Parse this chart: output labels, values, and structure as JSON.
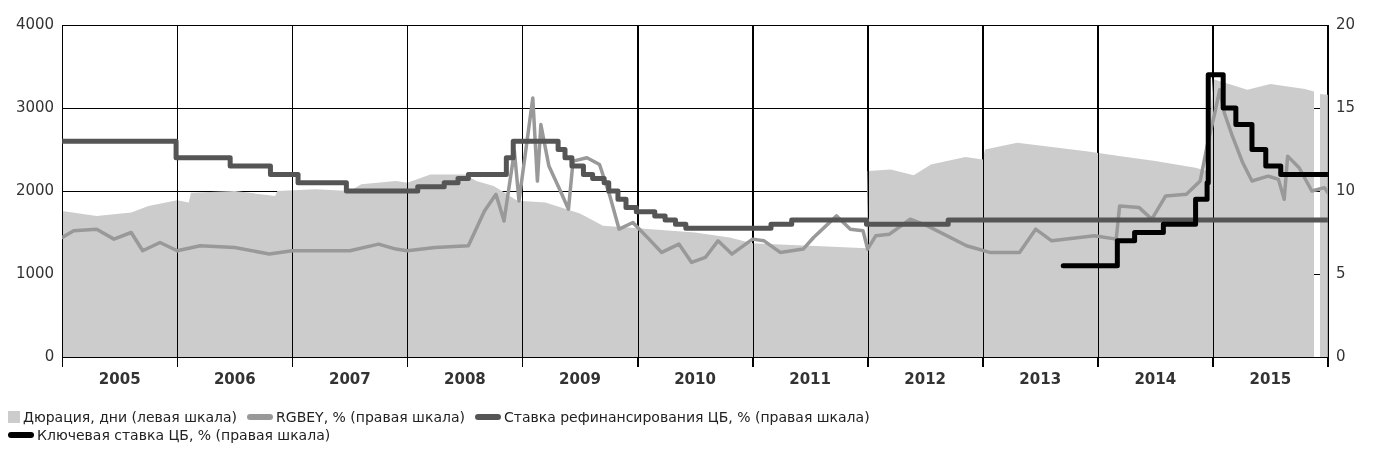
{
  "chart_data": {
    "type": "line",
    "xlim": [
      2005,
      2016
    ],
    "xticks": [
      {
        "value": 2005,
        "label": null
      },
      {
        "value": 2005.5,
        "label": "2005"
      },
      {
        "value": 2006,
        "label": null
      },
      {
        "value": 2006.5,
        "label": "2006"
      },
      {
        "value": 2007,
        "label": null
      },
      {
        "value": 2007.5,
        "label": "2007"
      },
      {
        "value": 2008,
        "label": null
      },
      {
        "value": 2008.5,
        "label": "2008"
      },
      {
        "value": 2009,
        "label": null
      },
      {
        "value": 2009.5,
        "label": "2009"
      },
      {
        "value": 2010,
        "label": null
      },
      {
        "value": 2010.5,
        "label": "2010"
      },
      {
        "value": 2011,
        "label": null
      },
      {
        "value": 2011.5,
        "label": "2011"
      },
      {
        "value": 2012,
        "label": null
      },
      {
        "value": 2012.5,
        "label": "2012"
      },
      {
        "value": 2013,
        "label": null
      },
      {
        "value": 2013.5,
        "label": "2013"
      },
      {
        "value": 2014,
        "label": null
      },
      {
        "value": 2014.5,
        "label": "2014"
      },
      {
        "value": 2015,
        "label": null
      },
      {
        "value": 2015.5,
        "label": "2015"
      },
      {
        "value": 2016,
        "label": null
      }
    ],
    "ylim": [
      0,
      4000
    ],
    "yticks": [
      0,
      1000,
      2000,
      3000,
      4000
    ],
    "y2lim": [
      0,
      20
    ],
    "y2ticks": [
      0,
      5,
      10,
      15,
      20
    ],
    "grid": true,
    "legend": "bottom",
    "series": [
      {
        "name": "Дюрация, дни (левая шкала)",
        "type": "area",
        "axis": "y",
        "color": "#cccccc",
        "x": [
          2005,
          2005.3,
          2005.6,
          2005.75,
          2006,
          2006.1,
          2006.12,
          2006.5,
          2006.85,
          2006.87,
          2007.2,
          2007.5,
          2007.6,
          2007.9,
          2008,
          2008.2,
          2008.5,
          2008.6,
          2008.75,
          2008.96,
          2009,
          2009.2,
          2009.5,
          2009.7,
          2010,
          2010.5,
          2010.8,
          2011,
          2011.5,
          2011.99,
          2012,
          2012.2,
          2012.4,
          2012.55,
          2012.85,
          2013,
          2013.02,
          2013.3,
          2013.6,
          2013.9,
          2014.2,
          2014.5,
          2014.85,
          2014.95,
          2015,
          2015.3,
          2015.5,
          2015.8,
          2015.88,
          2015.9,
          2015.93,
          2016
        ],
        "values": [
          1760,
          1700,
          1740,
          1820,
          1890,
          1860,
          1980,
          2000,
          1940,
          2000,
          2020,
          2000,
          2080,
          2120,
          2100,
          2200,
          2200,
          2120,
          2060,
          1880,
          1880,
          1860,
          1730,
          1580,
          1550,
          1500,
          1440,
          1370,
          1340,
          1310,
          2240,
          2260,
          2190,
          2320,
          2410,
          2380,
          2500,
          2580,
          2530,
          2480,
          2420,
          2360,
          2280,
          2240,
          3350,
          3220,
          3290,
          3230,
          3200,
          null,
          3170,
          3160
        ]
      },
      {
        "name": "RGBEY, % (правая шкала)",
        "type": "line",
        "axis": "y2",
        "color": "#999999",
        "x": [
          2005,
          2005.1,
          2005.3,
          2005.45,
          2005.6,
          2005.7,
          2005.85,
          2006,
          2006.2,
          2006.5,
          2006.8,
          2007,
          2007.5,
          2007.75,
          2007.9,
          2008,
          2008.24,
          2008.53,
          2008.67,
          2008.77,
          2008.84,
          2008.93,
          2008.97,
          2009.09,
          2009.13,
          2009.16,
          2009.23,
          2009.33,
          2009.4,
          2009.44,
          2009.56,
          2009.67,
          2009.76,
          2009.84,
          2009.96,
          2010.1,
          2010.21,
          2010.36,
          2010.47,
          2010.59,
          2010.7,
          2010.82,
          2011,
          2011.1,
          2011.24,
          2011.44,
          2011.53,
          2011.73,
          2011.85,
          2011.96,
          2012,
          2012.07,
          2012.19,
          2012.37,
          2012.52,
          2012.86,
          2013.06,
          2013.32,
          2013.46,
          2013.6,
          2013.97,
          2014.16,
          2014.19,
          2014.36,
          2014.47,
          2014.59,
          2014.77,
          2014.89,
          2014.95,
          2015.02,
          2015.06,
          2015.1,
          2015.17,
          2015.26,
          2015.34,
          2015.48,
          2015.57,
          2015.62,
          2015.65,
          2015.75,
          2015.86,
          2015.97,
          2016
        ],
        "values": [
          7.2,
          7.6,
          7.7,
          7.1,
          7.5,
          6.4,
          6.9,
          6.4,
          6.7,
          6.6,
          6.2,
          6.4,
          6.4,
          6.8,
          6.5,
          6.4,
          6.6,
          6.7,
          8.8,
          9.8,
          8.2,
          12.4,
          9.4,
          15.6,
          10.6,
          14,
          11.5,
          10,
          8.9,
          11.8,
          12,
          11.6,
          9.7,
          7.7,
          8.1,
          7.1,
          6.3,
          6.8,
          5.7,
          6,
          7,
          6.2,
          7.1,
          7,
          6.3,
          6.5,
          7.2,
          8.5,
          7.7,
          7.6,
          6.5,
          7.3,
          7.4,
          8.3,
          7.9,
          6.7,
          6.3,
          6.3,
          7.7,
          7,
          7.3,
          7.1,
          9.1,
          9,
          8.3,
          9.7,
          9.8,
          10.6,
          12.7,
          14.8,
          16.1,
          14.7,
          13.3,
          11.7,
          10.6,
          10.9,
          10.7,
          9.5,
          12.1,
          11.4,
          10,
          10.2,
          9.9
        ]
      },
      {
        "name": "Ставка рефинансирования ЦБ, % (правая шкала)",
        "type": "step",
        "axis": "y2",
        "color": "#555555",
        "x": [
          2005,
          2005.99,
          2006.46,
          2006.81,
          2007.05,
          2007.47,
          2008.09,
          2008.32,
          2008.44,
          2008.53,
          2008.86,
          2008.92,
          2009.31,
          2009.37,
          2009.43,
          2009.53,
          2009.61,
          2009.71,
          2009.75,
          2009.83,
          2009.9,
          2009.99,
          2010.15,
          2010.24,
          2010.33,
          2010.42,
          2011.16,
          2011.34,
          2011.99,
          2012.7,
          2016
        ],
        "values": [
          13,
          12,
          11.5,
          11,
          10.5,
          10,
          10.25,
          10.5,
          10.75,
          11,
          12,
          13,
          12.5,
          12,
          11.5,
          11,
          10.75,
          10.5,
          10,
          9.5,
          9,
          8.75,
          8.5,
          8.25,
          8,
          7.75,
          8,
          8.25,
          8,
          8.25,
          8.25
        ]
      },
      {
        "name": "Ключевая ставка ЦБ, % (правая шкала)",
        "type": "step",
        "axis": "y2",
        "color": "#000000",
        "x": [
          2013.7,
          2014.17,
          2014.32,
          2014.57,
          2014.85,
          2014.95,
          2014.96,
          2015.09,
          2015.2,
          2015.34,
          2015.46,
          2015.59,
          2016
        ],
        "values": [
          5.5,
          7,
          7.5,
          8,
          9.5,
          10.5,
          17,
          15,
          14,
          12.5,
          11.5,
          11,
          11
        ]
      }
    ]
  }
}
